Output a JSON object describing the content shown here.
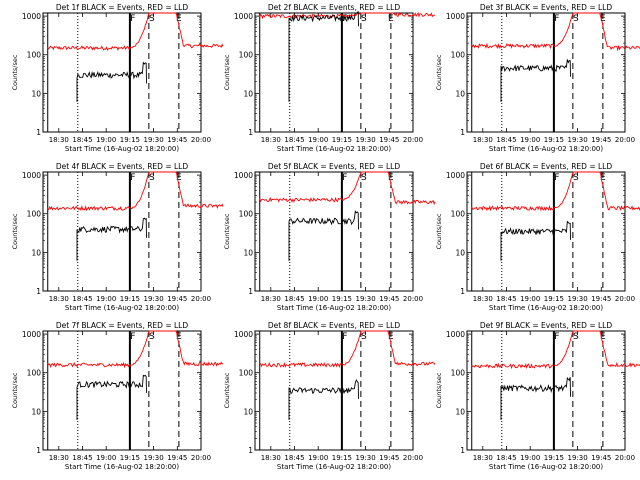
{
  "chart_data": [
    {
      "type": "line",
      "title": "Det 1f BLACK = Events, RED = LLD",
      "xlabel": "Start Time (16-Aug-02 18:20:00)",
      "ylabel": "Counts/sec",
      "x_ticks": [
        "18:30",
        "18:45",
        "19:00",
        "19:15",
        "19:30",
        "19:45",
        "20:00"
      ],
      "y_ticks": [
        "1",
        "10",
        "100",
        "1000"
      ],
      "markers": [
        "F",
        "S",
        "E"
      ],
      "series": [
        {
          "color": "#000000",
          "baseline": 30,
          "spike": 60
        },
        {
          "color": "#ff0000",
          "baseline": 150,
          "post": 170
        }
      ]
    },
    {
      "type": "line",
      "title": "Det 2f BLACK = Events, RED = LLD",
      "xlabel": "Start Time (16-Aug-02 18:20:00)",
      "ylabel": "Counts/sec",
      "x_ticks": [
        "18:30",
        "18:45",
        "19:00",
        "19:15",
        "19:30",
        "19:45",
        "20:00"
      ],
      "y_ticks": [
        "1",
        "10",
        "100",
        "1000"
      ],
      "markers": [
        "F",
        "S",
        "E"
      ],
      "series": [
        {
          "color": "#000000",
          "baseline": 900,
          "spike": 1200
        },
        {
          "color": "#ff0000",
          "baseline": 1000,
          "post": 1100
        }
      ]
    },
    {
      "type": "line",
      "title": "Det 3f BLACK = Events, RED = LLD",
      "xlabel": "Start Time (16-Aug-02 18:20:00)",
      "ylabel": "Counts/sec",
      "x_ticks": [
        "18:30",
        "18:45",
        "19:00",
        "19:15",
        "19:30",
        "19:45",
        "20:00"
      ],
      "y_ticks": [
        "1",
        "10",
        "100",
        "1000"
      ],
      "markers": [
        "F",
        "S",
        "E"
      ],
      "series": [
        {
          "color": "#000000",
          "baseline": 45,
          "spike": 70
        },
        {
          "color": "#ff0000",
          "baseline": 170,
          "post": 150
        }
      ]
    },
    {
      "type": "line",
      "title": "Det 4f BLACK = Events, RED = LLD",
      "xlabel": "Start Time (16-Aug-02 18:20:00)",
      "ylabel": "Counts/sec",
      "x_ticks": [
        "18:30",
        "18:45",
        "19:00",
        "19:15",
        "19:30",
        "19:45",
        "20:00"
      ],
      "y_ticks": [
        "1",
        "10",
        "100",
        "1000"
      ],
      "markers": [
        "F",
        "S",
        "E"
      ],
      "series": [
        {
          "color": "#000000",
          "baseline": 40,
          "spike": 70
        },
        {
          "color": "#ff0000",
          "baseline": 140,
          "post": 160
        }
      ]
    },
    {
      "type": "line",
      "title": "Det 5f BLACK = Events, RED = LLD",
      "xlabel": "Start Time (16-Aug-02 18:20:00)",
      "ylabel": "Counts/sec",
      "x_ticks": [
        "18:30",
        "18:45",
        "19:00",
        "19:15",
        "19:30",
        "19:45",
        "20:00"
      ],
      "y_ticks": [
        "1",
        "10",
        "100",
        "1000"
      ],
      "markers": [
        "F",
        "S",
        "E"
      ],
      "series": [
        {
          "color": "#000000",
          "baseline": 65,
          "spike": 110
        },
        {
          "color": "#ff0000",
          "baseline": 230,
          "post": 200
        }
      ]
    },
    {
      "type": "line",
      "title": "Det 6f BLACK = Events, RED = LLD",
      "xlabel": "Start Time (16-Aug-02 18:20:00)",
      "ylabel": "Counts/sec",
      "x_ticks": [
        "18:30",
        "18:45",
        "19:00",
        "19:15",
        "19:30",
        "19:45",
        "20:00"
      ],
      "y_ticks": [
        "1",
        "10",
        "100",
        "1000"
      ],
      "markers": [
        "F",
        "S",
        "E"
      ],
      "series": [
        {
          "color": "#000000",
          "baseline": 35,
          "spike": 60
        },
        {
          "color": "#ff0000",
          "baseline": 140,
          "post": 140
        }
      ]
    },
    {
      "type": "line",
      "title": "Det 7f BLACK = Events, RED = LLD",
      "xlabel": "Start Time (16-Aug-02 18:20:00)",
      "ylabel": "Counts/sec",
      "x_ticks": [
        "18:30",
        "18:45",
        "19:00",
        "19:15",
        "19:30",
        "19:45",
        "20:00"
      ],
      "y_ticks": [
        "1",
        "10",
        "100",
        "1000"
      ],
      "markers": [
        "F",
        "S",
        "E"
      ],
      "series": [
        {
          "color": "#000000",
          "baseline": 50,
          "spike": 80
        },
        {
          "color": "#ff0000",
          "baseline": 160,
          "post": 170
        }
      ]
    },
    {
      "type": "line",
      "title": "Det 8f BLACK = Events, RED = LLD",
      "xlabel": "Start Time (16-Aug-02 18:20:00)",
      "ylabel": "Counts/sec",
      "x_ticks": [
        "18:30",
        "18:45",
        "19:00",
        "19:15",
        "19:30",
        "19:45",
        "20:00"
      ],
      "y_ticks": [
        "1",
        "10",
        "100",
        "1000"
      ],
      "markers": [
        "F",
        "S",
        "E"
      ],
      "series": [
        {
          "color": "#000000",
          "baseline": 35,
          "spike": 60
        },
        {
          "color": "#ff0000",
          "baseline": 160,
          "post": 170
        }
      ]
    },
    {
      "type": "line",
      "title": "Det 9f BLACK = Events, RED = LLD",
      "xlabel": "Start Time (16-Aug-02 18:20:00)",
      "ylabel": "Counts/sec",
      "x_ticks": [
        "18:30",
        "18:45",
        "19:00",
        "19:15",
        "19:30",
        "19:45",
        "20:00"
      ],
      "y_ticks": [
        "1",
        "10",
        "100",
        "1000"
      ],
      "markers": [
        "F",
        "S",
        "E"
      ],
      "series": [
        {
          "color": "#000000",
          "baseline": 40,
          "spike": 70
        },
        {
          "color": "#ff0000",
          "baseline": 150,
          "post": 160
        }
      ]
    }
  ]
}
